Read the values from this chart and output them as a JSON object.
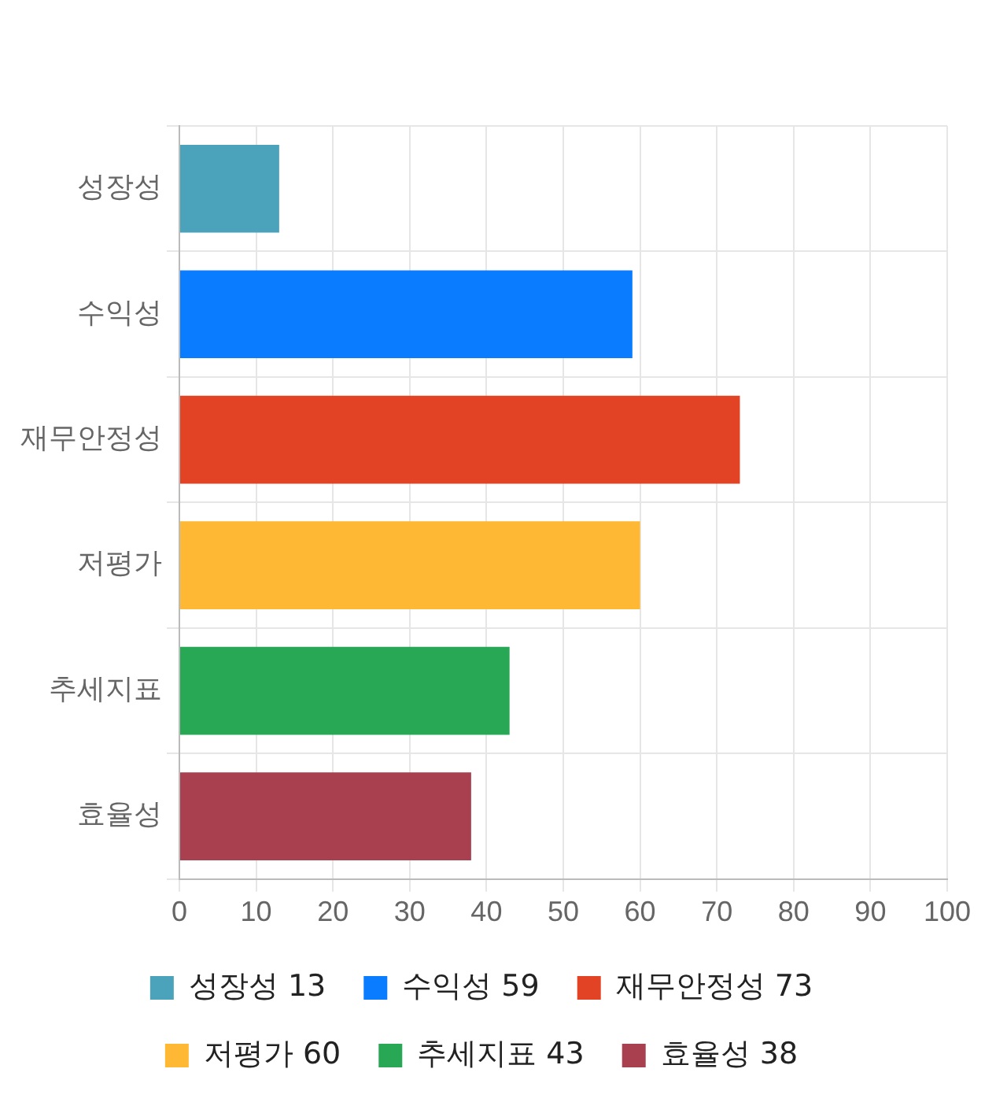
{
  "chart_data": {
    "type": "bar",
    "orientation": "horizontal",
    "stacked": true,
    "categories": [
      "성장성",
      "수익성",
      "재무안정성",
      "저평가",
      "추세지표",
      "효율성"
    ],
    "series": [
      {
        "name": "성장성 13",
        "color": "#4aa3bb",
        "values": [
          13,
          null,
          null,
          null,
          null,
          null
        ]
      },
      {
        "name": "수익성 59",
        "color": "#0a7cff",
        "values": [
          null,
          59,
          null,
          null,
          null,
          null
        ]
      },
      {
        "name": "재무안정성 73",
        "color": "#e24325",
        "values": [
          null,
          null,
          73,
          null,
          null,
          null
        ]
      },
      {
        "name": "저평가 60",
        "color": "#ffb833",
        "values": [
          null,
          null,
          null,
          60,
          null,
          null
        ]
      },
      {
        "name": "추세지표 43",
        "color": "#28a855",
        "values": [
          null,
          null,
          null,
          null,
          43,
          null
        ]
      },
      {
        "name": "효율성 38",
        "color": "#a8404f",
        "values": [
          null,
          null,
          null,
          null,
          null,
          38
        ]
      }
    ],
    "xlim": [
      0,
      100
    ],
    "xticks": [
      0,
      10,
      20,
      30,
      40,
      50,
      60,
      70,
      80,
      90,
      100
    ],
    "grid": true,
    "legend": "bottom"
  }
}
